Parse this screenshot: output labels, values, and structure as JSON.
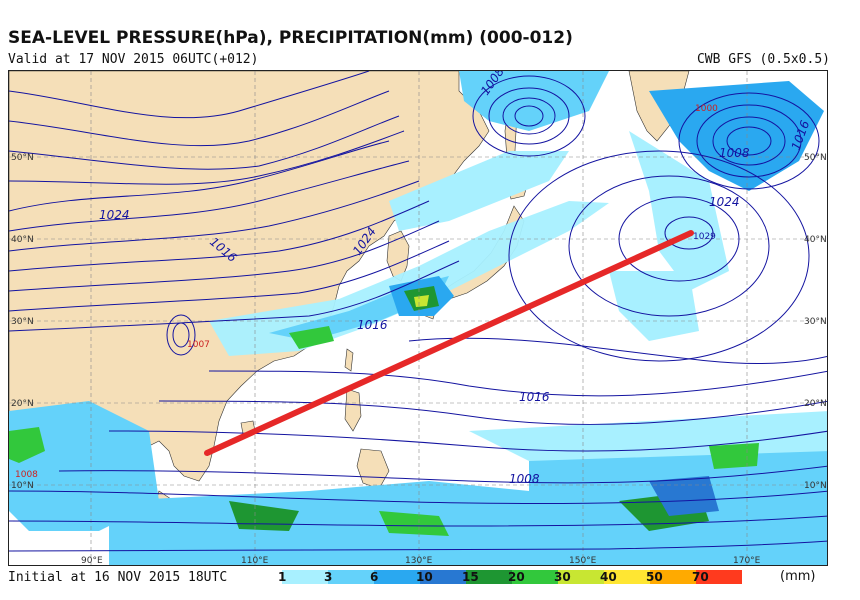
{
  "header": {
    "title": "SEA-LEVEL PRESSURE(hPa), PRECIPITATION(mm) (000-012)",
    "valid": "Valid at 17 NOV 2015 06UTC(+012)",
    "model": "CWB GFS (0.5x0.5)"
  },
  "footer": {
    "initial": "Initial at 16 NOV 2015 18UTC",
    "unit": "(mm)"
  },
  "colorbar": [
    {
      "label": "1",
      "color": "#a8f0ff"
    },
    {
      "label": "3",
      "color": "#64d2fa"
    },
    {
      "label": "6",
      "color": "#2aa8f0"
    },
    {
      "label": "10",
      "color": "#2878d2"
    },
    {
      "label": "15",
      "color": "#1e9632"
    },
    {
      "label": "20",
      "color": "#32c83c"
    },
    {
      "label": "30",
      "color": "#c8e632"
    },
    {
      "label": "40",
      "color": "#ffe632"
    },
    {
      "label": "50",
      "color": "#ffaa00"
    },
    {
      "label": "70",
      "color": "#ff3a1e"
    }
  ],
  "map": {
    "land_color": "#f5dfb8",
    "ocean_color": "#ffffff",
    "isobar_color": "#1414a0",
    "track_color": "#e62828",
    "isobar_labels": [
      "1024",
      "1016",
      "1024",
      "1016",
      "1008",
      "1016",
      "1024",
      "1008",
      "1008",
      "1016"
    ],
    "center_labels": [
      "1007",
      "1029",
      "1008",
      "1000"
    ],
    "lat_labels": [
      "50°N",
      "40°N",
      "30°N",
      "20°N",
      "10°N",
      "50°N",
      "40°N",
      "30°N",
      "20°N",
      "10°N"
    ],
    "lon_labels": [
      "90°E",
      "110°E",
      "130°E",
      "150°E",
      "170°E"
    ]
  }
}
